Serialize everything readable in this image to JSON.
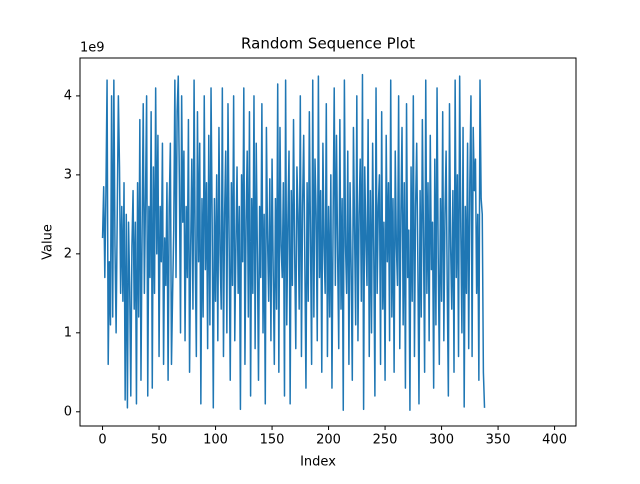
{
  "chart_data": {
    "type": "line",
    "title": "Random Sequence Plot",
    "x_label": "Index",
    "y_label": "Value",
    "y_offset_label": "1e9",
    "xlim": [
      -19.95,
      418.95
    ],
    "xticks": [
      0,
      50,
      100,
      150,
      200,
      250,
      300,
      350,
      400
    ],
    "ylim": [
      -0.18,
      4.48
    ],
    "yticks": [
      0,
      1,
      2,
      3,
      4
    ],
    "series": [
      {
        "name": "Value",
        "color": "#1f77b4",
        "values": [
          2.2,
          2.85,
          1.7,
          2.8,
          4.2,
          0.6,
          1.9,
          1.1,
          4.0,
          1.2,
          4.2,
          2.1,
          1.0,
          2.5,
          4.0,
          3.1,
          1.5,
          2.6,
          1.4,
          2.9,
          0.15,
          2.5,
          0.05,
          2.4,
          1.6,
          0.2,
          2.1,
          2.8,
          1.3,
          2.4,
          0.1,
          2.9,
          1.2,
          3.7,
          0.4,
          2.3,
          3.9,
          1.5,
          2.7,
          4.0,
          0.2,
          2.6,
          1.7,
          3.8,
          0.3,
          3.1,
          1.5,
          4.1,
          2.0,
          3.5,
          0.7,
          2.6,
          1.9,
          3.4,
          0.6,
          2.2,
          1.6,
          2.9,
          0.4,
          2.6,
          3.4,
          0.6,
          1.5,
          2.3,
          4.2,
          1.7,
          3.8,
          4.25,
          2.9,
          1.0,
          4.0,
          2.4,
          3.3,
          0.9,
          2.6,
          1.7,
          3.7,
          0.5,
          2.1,
          3.2,
          1.3,
          4.2,
          2.0,
          0.7,
          3.8,
          1.9,
          3.4,
          0.1,
          2.7,
          1.2,
          4.0,
          1.8,
          2.9,
          0.8,
          3.5,
          1.1,
          4.1,
          2.4,
          0.05,
          2.7,
          1.4,
          3.0,
          0.9,
          3.6,
          2.0,
          1.3,
          4.1,
          0.7,
          2.5,
          3.3,
          1.0,
          3.9,
          2.2,
          0.4,
          2.9,
          1.6,
          4.0,
          0.9,
          2.1,
          3.1,
          1.5,
          2.6,
          0.03,
          3.0,
          1.9,
          4.1,
          0.6,
          2.4,
          3.3,
          1.2,
          3.8,
          0.2,
          2.7,
          1.5,
          4.0,
          0.8,
          3.4,
          2.0,
          0.4,
          2.6,
          1.7,
          3.9,
          1.0,
          2.5,
          0.1,
          3.6,
          2.2,
          1.4,
          2.95,
          0.9,
          3.2,
          1.8,
          0.6,
          2.7,
          1.3,
          4.15,
          0.5,
          3.6,
          2.1,
          1.7,
          2.9,
          0.2,
          4.2,
          1.1,
          2.4,
          3.3,
          0.1,
          2.8,
          1.6,
          3.7,
          2.0,
          0.8,
          3.1,
          2.5,
          1.3,
          4.0,
          0.7,
          2.6,
          3.5,
          1.9,
          0.3,
          2.9,
          1.4,
          3.8,
          2.2,
          0.6,
          4.2,
          1.2,
          3.2,
          2.5,
          0.9,
          4.25,
          1.7,
          2.8,
          0.5,
          3.4,
          2.1,
          1.5,
          3.9,
          0.7,
          2.6,
          1.2,
          3.0,
          0.3,
          2.4,
          4.1,
          1.6,
          3.5,
          2.0,
          0.8,
          3.7,
          1.3,
          2.7,
          0.02,
          4.2,
          2.1,
          1.5,
          3.3,
          0.6,
          2.9,
          1.8,
          0.4,
          3.6,
          2.3,
          1.1,
          4.0,
          0.9,
          2.5,
          3.2,
          1.4,
          4.27,
          0.03,
          3.1,
          2.2,
          1.6,
          3.7,
          0.7,
          2.8,
          1.0,
          3.4,
          2.0,
          0.2,
          4.1,
          1.5,
          2.6,
          3.0,
          0.6,
          3.8,
          1.3,
          2.4,
          0.4,
          3.5,
          1.9,
          2.9,
          0.9,
          4.2,
          1.2,
          2.7,
          0.5,
          3.3,
          2.1,
          1.6,
          4.0,
          0.8,
          2.5,
          3.6,
          1.1,
          2.9,
          0.3,
          3.9,
          1.7,
          2.3,
          0.02,
          3.1,
          1.4,
          4.0,
          0.7,
          2.6,
          3.4,
          1.9,
          0.1,
          2.8,
          1.2,
          3.7,
          2.2,
          0.5,
          4.2,
          1.5,
          2.9,
          0.9,
          3.5,
          1.8,
          2.4,
          0.3,
          3.2,
          1.1,
          4.1,
          2.0,
          0.6,
          2.7,
          1.4,
          3.8,
          0.9,
          2.5,
          3.3,
          1.6,
          0.2,
          3.9,
          2.1,
          1.3,
          2.8,
          0.5,
          4.2,
          1.7,
          3.0,
          0.7,
          4.25,
          2.3,
          1.0,
          3.6,
          0.06,
          2.6,
          1.5,
          3.4,
          0.8,
          2.9,
          4.0,
          0.7,
          3.6,
          2.8,
          3.2,
          1.5,
          2.5,
          0.4,
          4.2,
          2.7,
          2.5,
          0.5,
          0.05
        ]
      }
    ],
    "grid": false
  }
}
